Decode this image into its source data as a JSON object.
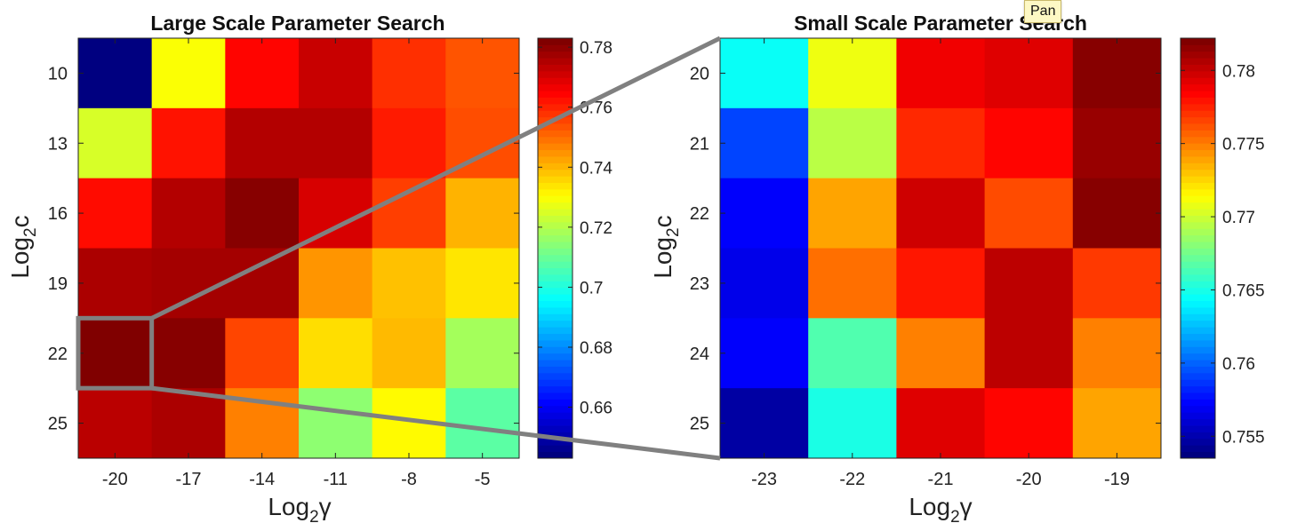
{
  "tooltip": {
    "text": "Pan"
  },
  "chart_data": [
    {
      "type": "heatmap",
      "title": "Large Scale Parameter Search",
      "xlabel": "Log2γ",
      "ylabel": "Log2c",
      "x": [
        -20,
        -17,
        -14,
        -11,
        -8,
        -5
      ],
      "y": [
        10,
        13,
        16,
        19,
        22,
        25
      ],
      "values": [
        [
          0.643,
          0.73,
          0.765,
          0.773,
          0.759,
          0.754
        ],
        [
          0.725,
          0.763,
          0.776,
          0.776,
          0.762,
          0.755
        ],
        [
          0.764,
          0.776,
          0.782,
          0.771,
          0.757,
          0.741
        ],
        [
          0.777,
          0.778,
          0.778,
          0.745,
          0.739,
          0.734
        ],
        [
          0.783,
          0.782,
          0.756,
          0.735,
          0.74,
          0.718
        ],
        [
          0.775,
          0.777,
          0.748,
          0.715,
          0.731,
          0.708
        ]
      ],
      "clim": [
        0.643,
        0.783
      ],
      "colorbar_ticks": [
        0.66,
        0.68,
        0.7,
        0.72,
        0.74,
        0.76,
        0.78
      ],
      "colormap": "jet",
      "highlight": {
        "x": -20,
        "y": 22
      }
    },
    {
      "type": "heatmap",
      "title": "Small Scale Parameter Search",
      "xlabel": "Log2γ",
      "ylabel": "Log2c",
      "x": [
        -23,
        -22,
        -21,
        -20,
        -19
      ],
      "y": [
        20,
        21,
        22,
        23,
        24,
        25
      ],
      "values": [
        [
          0.7645,
          0.771,
          0.779,
          0.7795,
          0.782
        ],
        [
          0.759,
          0.7695,
          0.7775,
          0.7785,
          0.7815
        ],
        [
          0.757,
          0.774,
          0.78,
          0.7765,
          0.782
        ],
        [
          0.7565,
          0.7755,
          0.778,
          0.7805,
          0.777
        ],
        [
          0.757,
          0.7665,
          0.775,
          0.7805,
          0.775
        ],
        [
          0.7545,
          0.765,
          0.7795,
          0.7785,
          0.774
        ]
      ],
      "clim": [
        0.7535,
        0.7822
      ],
      "colorbar_ticks": [
        0.755,
        0.76,
        0.765,
        0.77,
        0.775,
        0.78
      ],
      "colormap": "jet"
    }
  ]
}
